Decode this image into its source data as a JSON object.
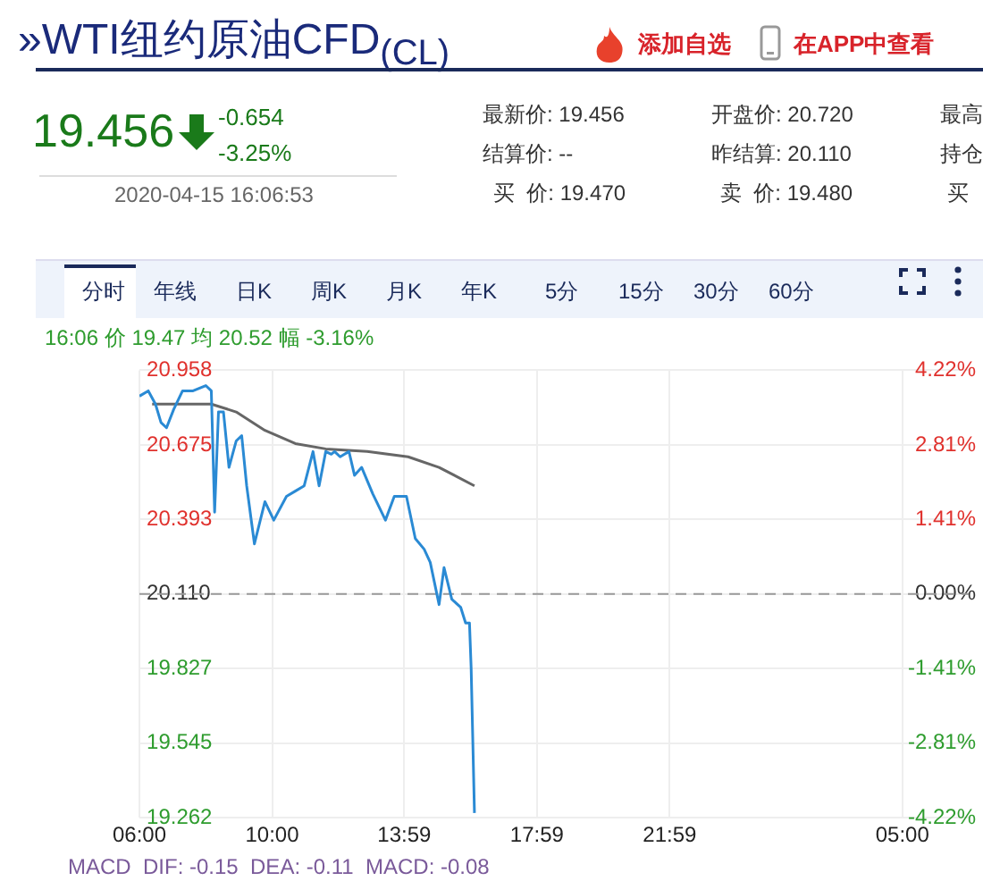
{
  "chart_data": {
    "type": "line",
    "title": "»WTI纽约原油CFD$_{(CL)}$",
    "annotations": [
      "19.456",
      "-0.654",
      "-3.25%",
      "2020-04-15 16:06:53",
      "最新价: 19.456",
      "开盘价: 20.720",
      "最高",
      "结算价: --",
      "昨结算: 20.110",
      "持仓",
      "买  价: 19.470",
      "卖  价: 19.480",
      "买",
      "添加自选",
      "在APP中查看",
      "分时",
      "年线",
      "日K",
      "周K",
      "月K",
      "年K",
      "5分",
      "15分",
      "30分",
      "60分",
      "16:06 价 19.47 均 20.52 幅 -3.16%",
      "MACD  DIF: -0.15  DEA: -0.11  MACD: -0.08"
    ],
    "series": [
      {
        "color": "#2a8ad4",
        "x": [
          "2020-04-15T06:00",
          "2020-04-15T06:16",
          "2020-04-15T06:29",
          "2020-04-15T06:39",
          "2020-04-15T06:49",
          "2020-04-15T07:02",
          "2020-04-15T07:18",
          "2020-04-15T07:37",
          "2020-04-15T08:00",
          "2020-04-15T08:10",
          "2020-04-15T08:16",
          "2020-04-15T08:23",
          "2020-04-15T08:32",
          "2020-04-15T08:42",
          "2020-04-15T08:55",
          "2020-04-15T09:05",
          "2020-04-15T09:14",
          "2020-04-15T09:28",
          "2020-04-15T09:47",
          "2020-04-15T10:03",
          "2020-04-15T10:26",
          "2020-04-15T10:42",
          "2020-04-15T10:58",
          "2020-04-15T11:14",
          "2020-04-15T11:25",
          "2020-04-15T11:37",
          "2020-04-15T11:47",
          "2020-04-15T11:53",
          "2020-04-15T12:03",
          "2020-04-15T12:19",
          "2020-04-15T12:29",
          "2020-04-15T12:42",
          "2020-04-15T13:02",
          "2020-04-15T13:25",
          "2020-04-15T13:41",
          "2020-04-15T14:03",
          "2020-04-15T14:19",
          "2020-04-15T14:35",
          "2020-04-15T14:46",
          "2020-04-15T15:02",
          "2020-04-15T15:11",
          "2020-04-15T15:25",
          "2020-04-15T15:41",
          "2020-04-15T15:50",
          "2020-04-15T15:57",
          "2020-04-15T16:00",
          "2020-04-15T16:06"
        ],
        "values": [
          20.86,
          20.88,
          20.83,
          20.76,
          20.74,
          20.81,
          20.88,
          20.88,
          20.9,
          20.88,
          20.42,
          20.8,
          20.8,
          20.59,
          20.69,
          20.71,
          20.52,
          20.3,
          20.46,
          20.39,
          20.48,
          20.5,
          20.52,
          20.65,
          20.52,
          20.65,
          20.64,
          20.65,
          20.63,
          20.65,
          20.56,
          20.59,
          20.49,
          20.39,
          20.48,
          20.48,
          20.32,
          20.28,
          20.23,
          20.07,
          20.21,
          20.09,
          20.06,
          20.0,
          20.0,
          19.83,
          19.28
        ]
      },
      {
        "color": "#666666",
        "x": [
          "2020-04-15T06:23",
          "2020-04-15T07:05",
          "2020-04-15T08:10",
          "2020-04-15T08:55",
          "2020-04-15T09:47",
          "2020-04-15T10:42",
          "2020-04-15T11:37",
          "2020-04-15T12:52",
          "2020-04-15T14:06",
          "2020-04-15T15:02",
          "2020-04-15T16:06"
        ],
        "values": [
          20.83,
          20.83,
          20.83,
          20.8,
          20.73,
          20.68,
          20.66,
          20.65,
          20.63,
          20.59,
          20.52
        ]
      }
    ],
    "xlim": [
      "2020-04-15T06:00",
      "2020-04-16T07:00"
    ],
    "xticks": [
      {
        "value": "2020-04-15T06:00",
        "label": "06:00"
      },
      {
        "value": "2020-04-15T10:00",
        "label": "10:00"
      },
      {
        "value": "2020-04-15T13:59",
        "label": "13:59"
      },
      {
        "value": "2020-04-15T17:59",
        "label": "17:59"
      },
      {
        "value": "2020-04-15T21:59",
        "label": "21:59"
      },
      {
        "value": "2020-04-16T05:00",
        "label": "05:00"
      }
    ],
    "ylim": [
      19.262,
      20.958
    ],
    "yticks": [
      19.262,
      19.545,
      19.827,
      {
        "value": 20.11,
        "label": "20.110"
      },
      20.393,
      20.675,
      20.958
    ],
    "y2lim": [
      -4.22,
      4.22
    ],
    "y2ticks": [
      {
        "value": -4.22,
        "label": "-4.22%"
      },
      {
        "value": -2.81,
        "label": "-2.81%"
      },
      {
        "value": -1.41,
        "label": "-1.41%"
      },
      {
        "value": 0,
        "label": "0.00%"
      },
      {
        "value": 1.41,
        "label": "1.41%"
      },
      {
        "value": 2.81,
        "label": "2.81%"
      },
      {
        "value": 4.22,
        "label": "4.22%"
      }
    ],
    "ref_lines": [
      {
        "axis": "y",
        "value": 20.11,
        "color": "#999999",
        "line_style": "dashed"
      }
    ],
    "grid": true,
    "marker": "none",
    "line_style": "solid",
    "legend": false
  }
}
